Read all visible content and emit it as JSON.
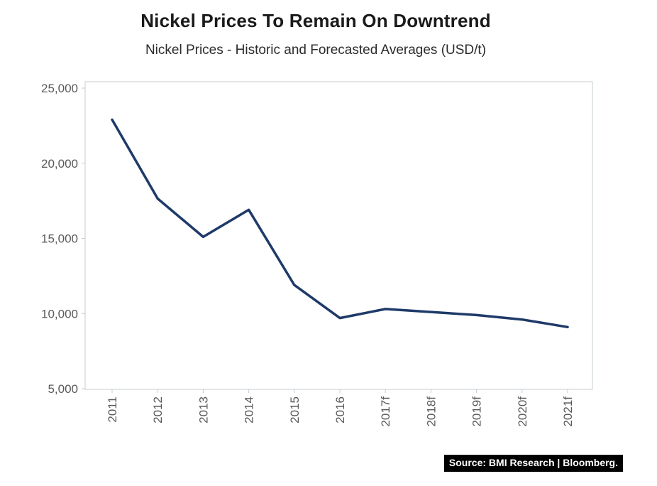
{
  "header": {
    "title": "Nickel Prices To Remain On Downtrend",
    "subtitle": "Nickel Prices - Historic and Forecasted Averages (USD/t)"
  },
  "source": {
    "text": "Source: BMI Research | Bloomberg."
  },
  "chart_data": {
    "type": "line",
    "title": "Nickel Prices To Remain On Downtrend",
    "subtitle": "Nickel Prices - Historic and Forecasted Averages (USD/t)",
    "categories": [
      "2011",
      "2012",
      "2013",
      "2014",
      "2015",
      "2016",
      "2017f",
      "2018f",
      "2019f",
      "2020f",
      "2021f"
    ],
    "values": [
      22900,
      17650,
      15100,
      16900,
      11900,
      9700,
      10300,
      10100,
      9900,
      9600,
      9100
    ],
    "ylim": [
      5000,
      25000
    ],
    "ytick_step": 5000,
    "xlabel": "",
    "ylabel": "",
    "grid": false,
    "legend_position": "none",
    "line_color": "#1e3a68",
    "axis_border_color": "#c6ccd2",
    "tick_label_color": "#58595b"
  }
}
